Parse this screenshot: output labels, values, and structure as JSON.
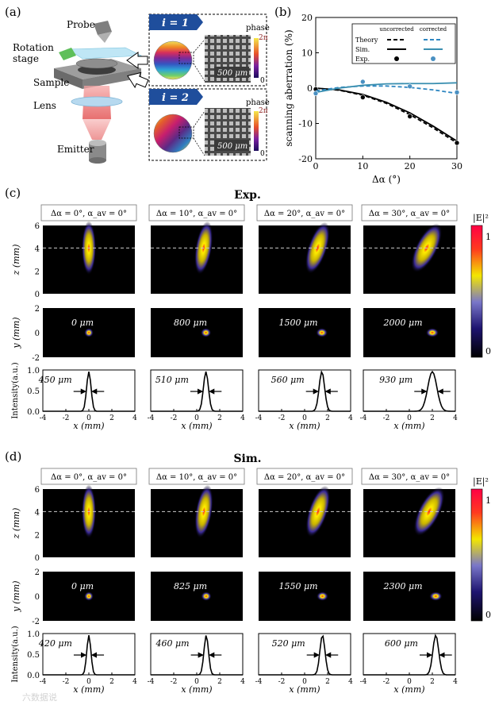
{
  "panel_labels": {
    "a": "(a)",
    "b": "(b)",
    "c": "(c)",
    "d": "(d)"
  },
  "schematic": {
    "labels": {
      "probe": "Probe",
      "rotation_stage": "Rotation\nstage",
      "sample": "Sample",
      "lens": "Lens",
      "emitter": "Emitter"
    },
    "insets": [
      {
        "tag": "i = 1",
        "phase_label": "phase",
        "phase_top": "2π",
        "phase_bottom": "0",
        "scale_bar": "500 μm"
      },
      {
        "tag": "i = 2",
        "phase_label": "phase",
        "phase_top": "2π",
        "phase_bottom": "0",
        "scale_bar": "500 μm"
      }
    ]
  },
  "chart_data": {
    "type": "line",
    "xlabel": "Δα (°)",
    "ylabel": "scanning aberration (%)",
    "xlim": [
      0,
      30
    ],
    "ylim": [
      -20,
      20
    ],
    "xticks": [
      "0",
      "10",
      "20",
      "30"
    ],
    "yticks": [
      "-20",
      "-10",
      "0",
      "10",
      "20"
    ],
    "legend": {
      "placement": "top-right",
      "col_headers": [
        "uncorrected",
        "corrected"
      ],
      "row_labels": [
        "Theory",
        "Sim.",
        "Exp."
      ]
    },
    "series": [
      {
        "key": "unc_theory",
        "style": "dashed",
        "color": "#000000",
        "x": [
          0,
          5,
          10,
          15,
          20,
          25,
          30
        ],
        "y": [
          0,
          -0.6,
          -2.0,
          -4.3,
          -7.5,
          -11.3,
          -15.5
        ]
      },
      {
        "key": "unc_sim",
        "style": "solid",
        "color": "#000000",
        "x": [
          0,
          5,
          10,
          15,
          20,
          25,
          30
        ],
        "y": [
          0,
          -0.5,
          -1.8,
          -4.0,
          -7.0,
          -10.8,
          -15.0
        ]
      },
      {
        "key": "unc_exp",
        "style": "points",
        "color": "#000000",
        "x": [
          0,
          10,
          20,
          30
        ],
        "y": [
          -0.3,
          -2.6,
          -8.0,
          -15.5
        ]
      },
      {
        "key": "cor_theory",
        "style": "dashed",
        "color": "#2e86c1",
        "x": [
          0,
          5,
          10,
          15,
          20,
          25,
          30
        ],
        "y": [
          -0.8,
          0.2,
          0.6,
          0.6,
          0.2,
          -0.5,
          -1.5
        ]
      },
      {
        "key": "cor_sim",
        "style": "solid",
        "color": "#3a8fb0",
        "x": [
          0,
          5,
          10,
          15,
          20,
          25,
          30
        ],
        "y": [
          -1.2,
          0.0,
          0.8,
          1.2,
          1.3,
          1.3,
          1.5
        ]
      },
      {
        "key": "cor_exp",
        "style": "points",
        "color": "#4a90c2",
        "x": [
          0,
          10,
          20,
          30
        ],
        "y": [
          -1.5,
          1.8,
          0.5,
          -1.2
        ]
      }
    ]
  },
  "beam_figures": {
    "colorbar": {
      "label": "|E|²",
      "max": "1",
      "min": "0"
    },
    "axes": {
      "z_label": "z (mm)",
      "y_label": "y (mm)",
      "i_label": "Intensity(a.u.)",
      "x_label": "x (mm)",
      "z_ticks": [
        "6",
        "4",
        "2",
        "0"
      ],
      "y_ticks": [
        "2",
        "0",
        "-2"
      ],
      "i_ticks": [
        "1.0",
        "0.5",
        "0.0"
      ],
      "x_ticks": [
        "-4",
        "-2",
        "0",
        "2",
        "4"
      ]
    },
    "groups": [
      {
        "title": "Exp.",
        "cols": [
          {
            "header": "Δα = 0°, α_av = 0°",
            "shift": "0 μm",
            "fwhm": "450 μm",
            "center_mm": 0.0,
            "tilt_deg": 0
          },
          {
            "header": "Δα = 10°, α_av = 0°",
            "shift": "800 μm",
            "fwhm": "510 μm",
            "center_mm": 0.8,
            "tilt_deg": 10
          },
          {
            "header": "Δα = 20°, α_av = 0°",
            "shift": "1500 μm",
            "fwhm": "560 μm",
            "center_mm": 1.5,
            "tilt_deg": 20
          },
          {
            "header": "Δα = 30°, α_av = 0°",
            "shift": "2000 μm",
            "fwhm": "930 μm",
            "center_mm": 2.0,
            "tilt_deg": 30
          }
        ]
      },
      {
        "title": "Sim.",
        "cols": [
          {
            "header": "Δα = 0°, α_av = 0°",
            "shift": "0 μm",
            "fwhm": "420 μm",
            "center_mm": 0.0,
            "tilt_deg": 0
          },
          {
            "header": "Δα = 10°, α_av = 0°",
            "shift": "825 μm",
            "fwhm": "460 μm",
            "center_mm": 0.825,
            "tilt_deg": 10
          },
          {
            "header": "Δα = 20°, α_av = 0°",
            "shift": "1550 μm",
            "fwhm": "520 μm",
            "center_mm": 1.55,
            "tilt_deg": 20
          },
          {
            "header": "Δα = 30°, α_av = 0°",
            "shift": "2300 μm",
            "fwhm": "600 μm",
            "center_mm": 2.3,
            "tilt_deg": 30
          }
        ]
      }
    ]
  },
  "watermark": "六数据说"
}
